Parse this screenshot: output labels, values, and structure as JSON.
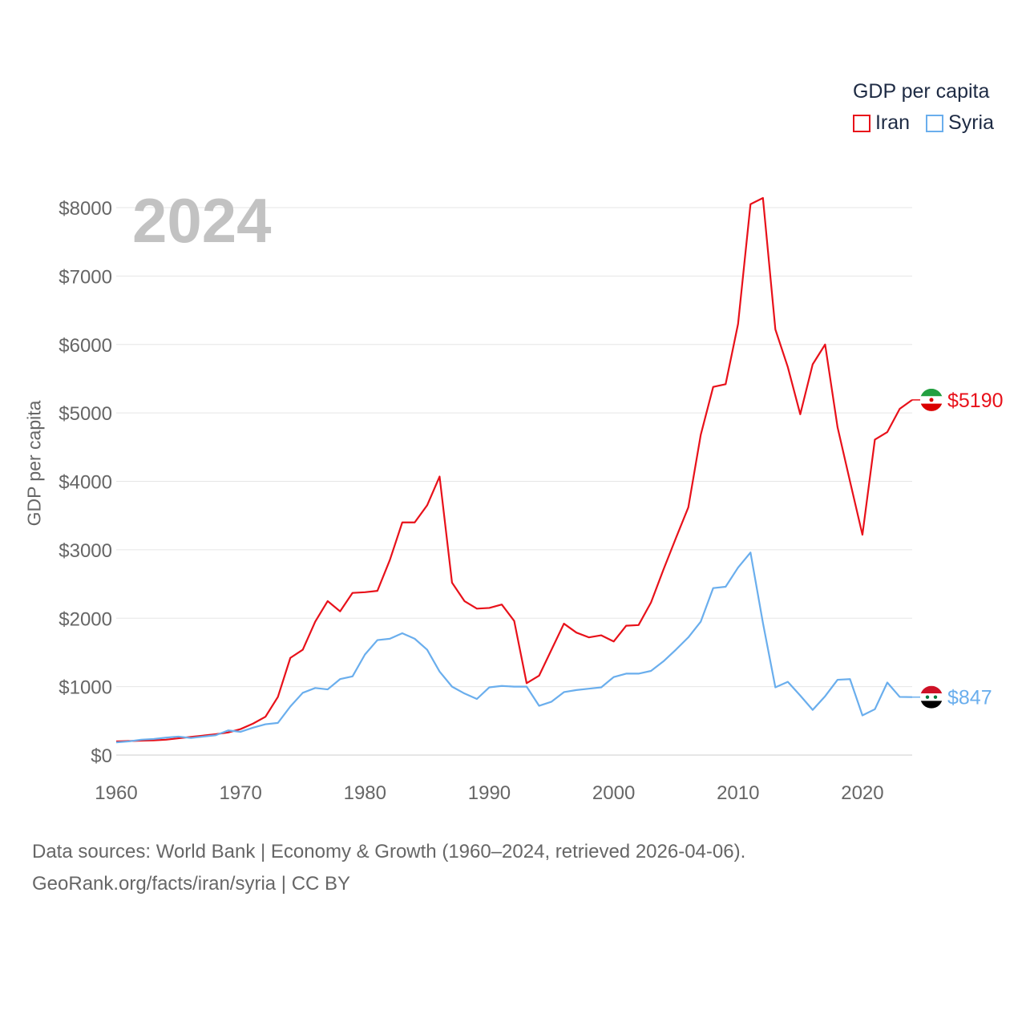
{
  "chart_data": {
    "type": "line",
    "title": "GDP per capita",
    "year_badge": "2024",
    "ylabel": "GDP per capita",
    "xlabel": "",
    "xlim": [
      1960,
      2024
    ],
    "ylim": [
      0,
      8000
    ],
    "x_ticks": [
      "1960",
      "1970",
      "1980",
      "1990",
      "2000",
      "2010",
      "2020"
    ],
    "y_ticks": [
      "$0",
      "$1000",
      "$2000",
      "$3000",
      "$4000",
      "$5000",
      "$6000",
      "$7000",
      "$8000"
    ],
    "grid": true,
    "legend_position": "top-right",
    "years": [
      1960,
      1961,
      1962,
      1963,
      1964,
      1965,
      1966,
      1967,
      1968,
      1969,
      1970,
      1971,
      1972,
      1973,
      1974,
      1975,
      1976,
      1977,
      1978,
      1979,
      1980,
      1981,
      1982,
      1983,
      1984,
      1985,
      1986,
      1987,
      1988,
      1989,
      1990,
      1991,
      1992,
      1993,
      1994,
      1995,
      1996,
      1997,
      1998,
      1999,
      2000,
      2001,
      2002,
      2003,
      2004,
      2005,
      2006,
      2007,
      2008,
      2009,
      2010,
      2011,
      2012,
      2013,
      2014,
      2015,
      2016,
      2017,
      2018,
      2019,
      2020,
      2021,
      2022,
      2023,
      2024
    ],
    "series": [
      {
        "name": "Iran",
        "color": "#e8111a",
        "end_label": "$5190",
        "flag": "iran-flag-icon",
        "values": [
          200,
          205,
          210,
          215,
          225,
          245,
          265,
          285,
          305,
          330,
          380,
          460,
          560,
          850,
          1420,
          1540,
          1950,
          2250,
          2100,
          2370,
          2380,
          2400,
          2850,
          3400,
          3400,
          3650,
          4070,
          2520,
          2250,
          2140,
          2150,
          2200,
          1960,
          1050,
          1160,
          1540,
          1920,
          1790,
          1720,
          1750,
          1660,
          1890,
          1900,
          2230,
          2710,
          3170,
          3620,
          4680,
          5380,
          5420,
          6300,
          8050,
          8140,
          6220,
          5670,
          4980,
          5710,
          6000,
          4790,
          4000,
          3220,
          4610,
          4720,
          5060,
          5190
        ]
      },
      {
        "name": "Syria",
        "color": "#6aaeed",
        "end_label": "$847",
        "flag": "syria-flag-icon",
        "values": [
          185,
          200,
          225,
          235,
          255,
          270,
          250,
          270,
          290,
          360,
          340,
          400,
          450,
          470,
          710,
          910,
          980,
          960,
          1110,
          1150,
          1470,
          1680,
          1700,
          1780,
          1700,
          1540,
          1220,
          1000,
          900,
          820,
          990,
          1010,
          1000,
          1000,
          720,
          780,
          920,
          950,
          970,
          990,
          1140,
          1190,
          1190,
          1230,
          1370,
          1540,
          1720,
          1950,
          2440,
          2460,
          2740,
          2960,
          1930,
          990,
          1070,
          870,
          660,
          860,
          1100,
          1110,
          580,
          670,
          1060,
          850,
          847
        ]
      }
    ]
  },
  "legend": {
    "title": "GDP per capita",
    "items": [
      "Iran",
      "Syria"
    ]
  },
  "footer": {
    "line1": "Data sources: World Bank | Economy & Growth (1960–2024, retrieved 2026-04-06).",
    "line2": "GeoRank.org/facts/iran/syria | CC BY"
  }
}
